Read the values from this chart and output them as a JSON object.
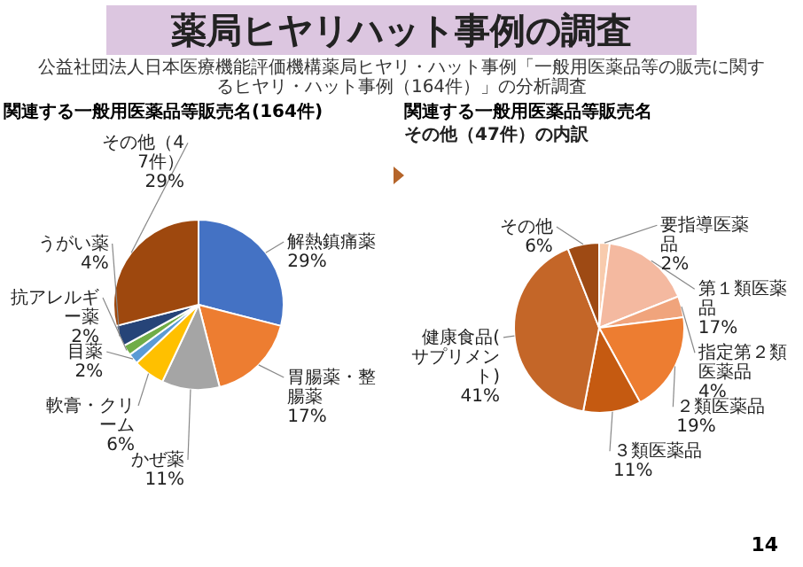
{
  "chart_data": [
    {
      "type": "other",
      "title": "薬局ヒヤリハット事例の調査",
      "subtitle": "公益社団法人日本医療機能評価機構薬局ヒヤリ・ハット事例「一般用医薬品等の販売に関するヒヤリ・ハット事例（164件）」の分析調査",
      "annotations": [
        "14"
      ]
    },
    {
      "type": "pie",
      "title": "関連する一般用医薬品等販売名(164件)",
      "categories": [
        "解熱鎮痛薬",
        "胃腸薬・整腸薬",
        "かぜ薬",
        "軟膏・クリーム",
        "目薬",
        "抗アレルギー薬",
        "うがい薬",
        "その他（47件）"
      ],
      "values": [
        29,
        17,
        11,
        6,
        2,
        2,
        4,
        29
      ],
      "colors": [
        "#4472c4",
        "#ed7d31",
        "#a5a5a5",
        "#ffc000",
        "#5b9bd5",
        "#70ad47",
        "#264478",
        "#9e480e"
      ],
      "value_labels": [
        "29%",
        "17%",
        "11%",
        "6%",
        "2%",
        "2%",
        "4%",
        "29%"
      ]
    },
    {
      "type": "pie",
      "title": "関連する一般用医薬品等販売名",
      "subtitle": "その他（47件）の内訳",
      "categories": [
        "要指導医薬品",
        "第１類医薬品",
        "指定第２類医薬品",
        "２類医薬品",
        "３類医薬品",
        "健康食品(サプリメント)",
        "その他"
      ],
      "values": [
        2,
        17,
        4,
        19,
        11,
        41,
        6
      ],
      "colors": [
        "#f8cbad",
        "#f4b9a0",
        "#f0a47c",
        "#ed7d31",
        "#c55a11",
        "#c46628",
        "#9e4a14"
      ],
      "value_labels": [
        "2%",
        "17%",
        "4%",
        "19%",
        "11%",
        "41%",
        "6%"
      ]
    }
  ]
}
